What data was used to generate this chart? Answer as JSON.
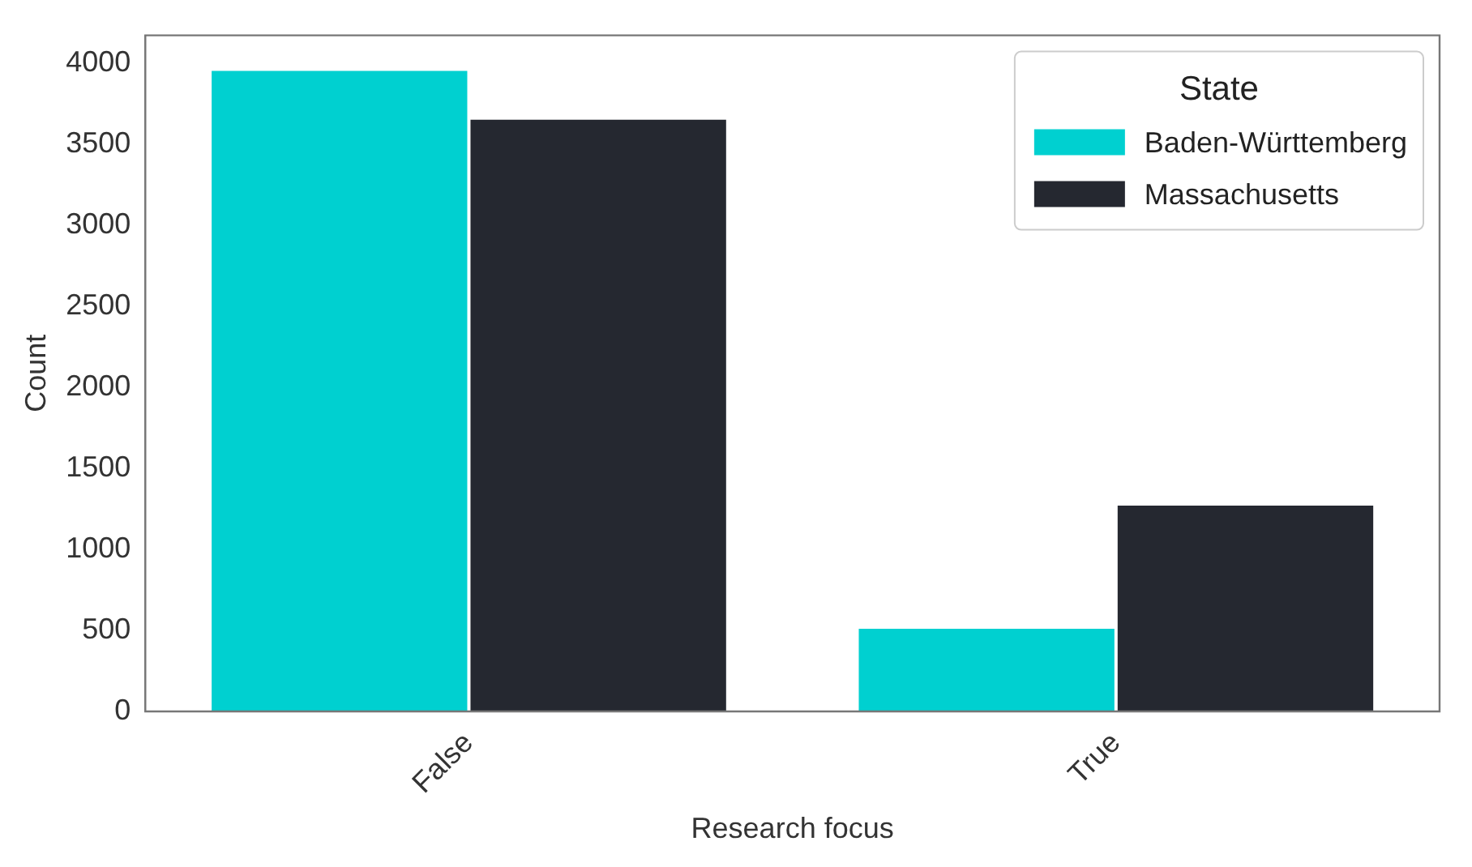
{
  "chart_data": {
    "type": "bar",
    "xlabel": "Research focus",
    "ylabel": "Count",
    "legend_title": "State",
    "categories": [
      "False",
      "True"
    ],
    "series": [
      {
        "name": "Baden-Württemberg",
        "color": "#00d0d0",
        "values": [
          3960,
          520
        ]
      },
      {
        "name": "Massachusetts",
        "color": "#252830",
        "values": [
          3660,
          1280
        ]
      }
    ],
    "ylim": [
      0,
      4170
    ],
    "yticks": [
      0,
      500,
      1000,
      1500,
      2000,
      2500,
      3000,
      3500,
      4000
    ],
    "grid": false,
    "legend": "top right"
  }
}
